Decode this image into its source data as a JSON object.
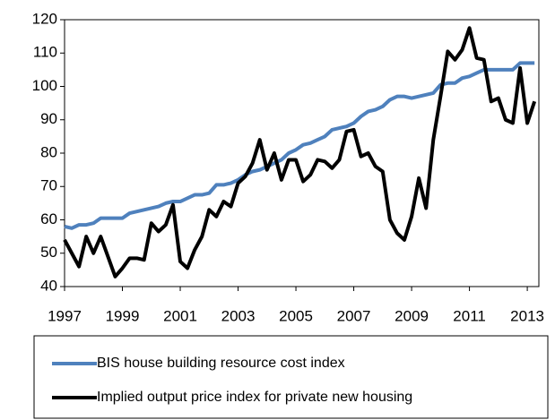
{
  "chart_data": {
    "type": "line",
    "x": [
      1997,
      1997.25,
      1997.5,
      1997.75,
      1998,
      1998.25,
      1998.5,
      1998.75,
      1999,
      1999.25,
      1999.5,
      1999.75,
      2000,
      2000.25,
      2000.5,
      2000.75,
      2001,
      2001.25,
      2001.5,
      2001.75,
      2002,
      2002.25,
      2002.5,
      2002.75,
      2003,
      2003.25,
      2003.5,
      2003.75,
      2004,
      2004.25,
      2004.5,
      2004.75,
      2005,
      2005.25,
      2005.5,
      2005.75,
      2006,
      2006.25,
      2006.5,
      2006.75,
      2007,
      2007.25,
      2007.5,
      2007.75,
      2008,
      2008.25,
      2008.5,
      2008.75,
      2009,
      2009.25,
      2009.5,
      2009.75,
      2010,
      2010.25,
      2010.5,
      2010.75,
      2011,
      2011.25,
      2011.5,
      2011.75,
      2012,
      2012.25,
      2012.5,
      2012.75,
      2013,
      2013.25
    ],
    "series": [
      {
        "name": "BIS house building resource cost index",
        "color": "#4f81bd",
        "values": [
          58,
          57.5,
          58.5,
          58.5,
          59,
          60.5,
          60.5,
          60.5,
          60.5,
          62,
          62.5,
          63,
          63.5,
          64,
          65,
          65.5,
          65.5,
          66.5,
          67.5,
          67.5,
          68,
          70.5,
          70.5,
          71,
          72,
          73.5,
          74.5,
          75,
          76,
          77,
          78,
          80,
          81,
          82.5,
          83,
          84,
          85,
          87,
          87.5,
          88,
          89,
          91,
          92.5,
          93,
          94,
          96,
          97,
          97,
          96.5,
          97,
          97.5,
          98,
          100.5,
          101,
          101,
          102.5,
          103,
          104,
          105,
          105,
          105,
          105,
          105,
          107,
          107,
          107
        ]
      },
      {
        "name": "Implied output price index for private new housing",
        "color": "#000000",
        "values": [
          54,
          50,
          46,
          55,
          50,
          55,
          49,
          43,
          45.5,
          48.5,
          48.5,
          48,
          59,
          56.5,
          58.5,
          64.5,
          47.5,
          45.5,
          51,
          55,
          63,
          61,
          65.5,
          64,
          71,
          73,
          77,
          84,
          75,
          80,
          72,
          78,
          78,
          71.5,
          73.5,
          78,
          77.5,
          75.5,
          78,
          86.5,
          87,
          79,
          80,
          76,
          74.5,
          60,
          56,
          54,
          61,
          72.5,
          63.5,
          84,
          97,
          110.5,
          108,
          111,
          117.5,
          108.5,
          108,
          95.5,
          96.5,
          90,
          89,
          105.5,
          89,
          95.5
        ]
      }
    ],
    "xlim": [
      1997,
      2013.4
    ],
    "xticks": [
      1997,
      1999,
      2001,
      2003,
      2005,
      2007,
      2009,
      2011,
      2013
    ],
    "ylim": [
      40,
      120
    ],
    "yticks": [
      40,
      50,
      60,
      70,
      80,
      90,
      100,
      110,
      120
    ],
    "legend": "bottom"
  }
}
